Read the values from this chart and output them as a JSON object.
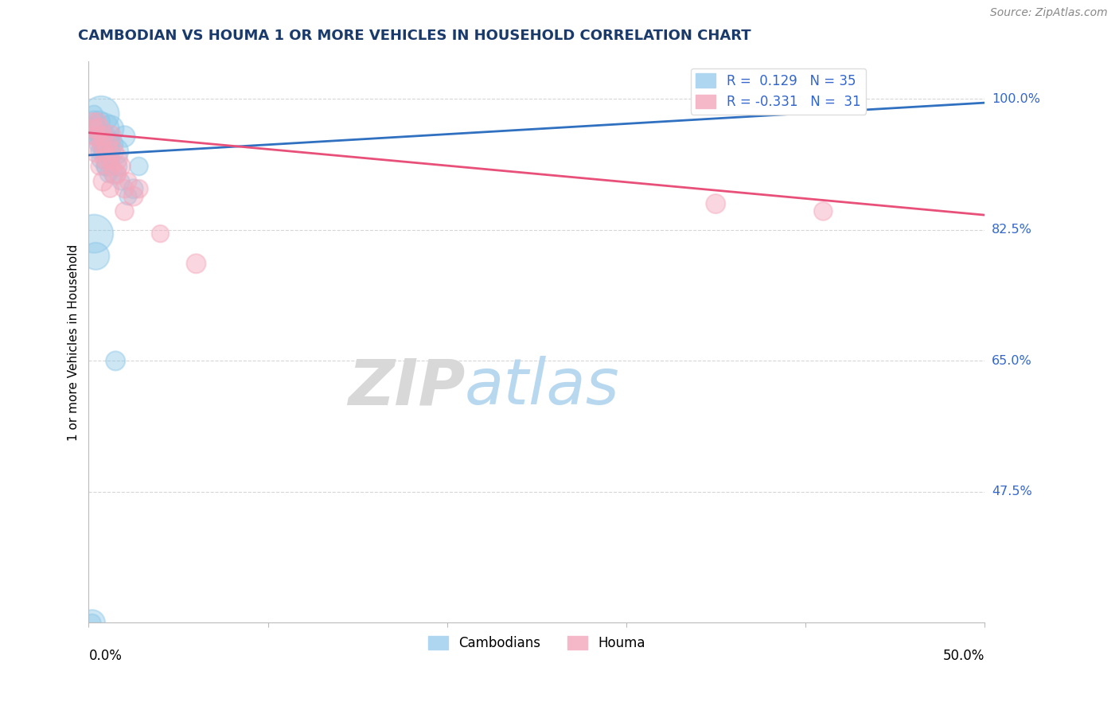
{
  "title": "CAMBODIAN VS HOUMA 1 OR MORE VEHICLES IN HOUSEHOLD CORRELATION CHART",
  "source": "Source: ZipAtlas.com",
  "ylabel": "1 or more Vehicles in Household",
  "yticks_right": [
    "100.0%",
    "82.5%",
    "65.0%",
    "47.5%"
  ],
  "yticks_right_vals": [
    1.0,
    0.825,
    0.65,
    0.475
  ],
  "xmin": 0.0,
  "xmax": 0.5,
  "ymin": 0.3,
  "ymax": 1.05,
  "cambodian_color": "#8ec8e8",
  "houma_color": "#f4a8bc",
  "trend_cambodian_color": "#3070c0",
  "trend_houma_color": "#e8507a",
  "background_color": "#ffffff",
  "title_color": "#1a3a6b",
  "source_color": "#888888",
  "legend_label_color": "#3366cc",
  "watermark_zip_color": "#d8d8d8",
  "watermark_atlas_color": "#b8d8f0",
  "cambodian_x": [
    0.002,
    0.003,
    0.003,
    0.004,
    0.005,
    0.005,
    0.006,
    0.006,
    0.007,
    0.007,
    0.007,
    0.008,
    0.008,
    0.009,
    0.009,
    0.01,
    0.01,
    0.011,
    0.011,
    0.012,
    0.012,
    0.013,
    0.014,
    0.015,
    0.016,
    0.018,
    0.02,
    0.022,
    0.025,
    0.028,
    0.003,
    0.004,
    0.015,
    0.002,
    0.002
  ],
  "cambodian_y": [
    0.96,
    0.98,
    0.97,
    0.95,
    0.96,
    0.94,
    0.97,
    0.93,
    0.98,
    0.95,
    0.92,
    0.96,
    0.93,
    0.95,
    0.91,
    0.94,
    0.91,
    0.93,
    0.9,
    0.96,
    0.92,
    0.94,
    0.9,
    0.93,
    0.91,
    0.89,
    0.95,
    0.87,
    0.88,
    0.91,
    0.82,
    0.79,
    0.65,
    0.3,
    0.3
  ],
  "cambodian_size": [
    100,
    80,
    120,
    90,
    100,
    80,
    120,
    80,
    350,
    150,
    100,
    280,
    90,
    130,
    80,
    200,
    100,
    150,
    80,
    200,
    90,
    130,
    100,
    180,
    100,
    80,
    120,
    80,
    100,
    90,
    400,
    200,
    100,
    180,
    80
  ],
  "houma_x": [
    0.002,
    0.003,
    0.004,
    0.005,
    0.006,
    0.007,
    0.008,
    0.009,
    0.01,
    0.011,
    0.012,
    0.013,
    0.014,
    0.015,
    0.016,
    0.018,
    0.02,
    0.022,
    0.025,
    0.028,
    0.004,
    0.006,
    0.008,
    0.01,
    0.012,
    0.015,
    0.02,
    0.35,
    0.41,
    0.04,
    0.06
  ],
  "houma_y": [
    0.97,
    0.96,
    0.95,
    0.97,
    0.96,
    0.94,
    0.95,
    0.93,
    0.94,
    0.92,
    0.95,
    0.91,
    0.93,
    0.92,
    0.9,
    0.91,
    0.88,
    0.89,
    0.87,
    0.88,
    0.93,
    0.91,
    0.89,
    0.92,
    0.88,
    0.9,
    0.85,
    0.86,
    0.85,
    0.82,
    0.78
  ],
  "houma_size": [
    80,
    90,
    100,
    80,
    120,
    90,
    100,
    80,
    120,
    90,
    130,
    80,
    100,
    150,
    80,
    100,
    90,
    80,
    100,
    90,
    120,
    80,
    100,
    130,
    80,
    120,
    90,
    100,
    90,
    80,
    100
  ],
  "grid_color": "#cccccc",
  "grid_alpha": 0.8,
  "trend_blue_x0": 0.0,
  "trend_blue_y0": 0.925,
  "trend_blue_x1": 0.5,
  "trend_blue_y1": 0.995,
  "trend_pink_x0": 0.0,
  "trend_pink_y0": 0.955,
  "trend_pink_x1": 0.5,
  "trend_pink_y1": 0.845
}
